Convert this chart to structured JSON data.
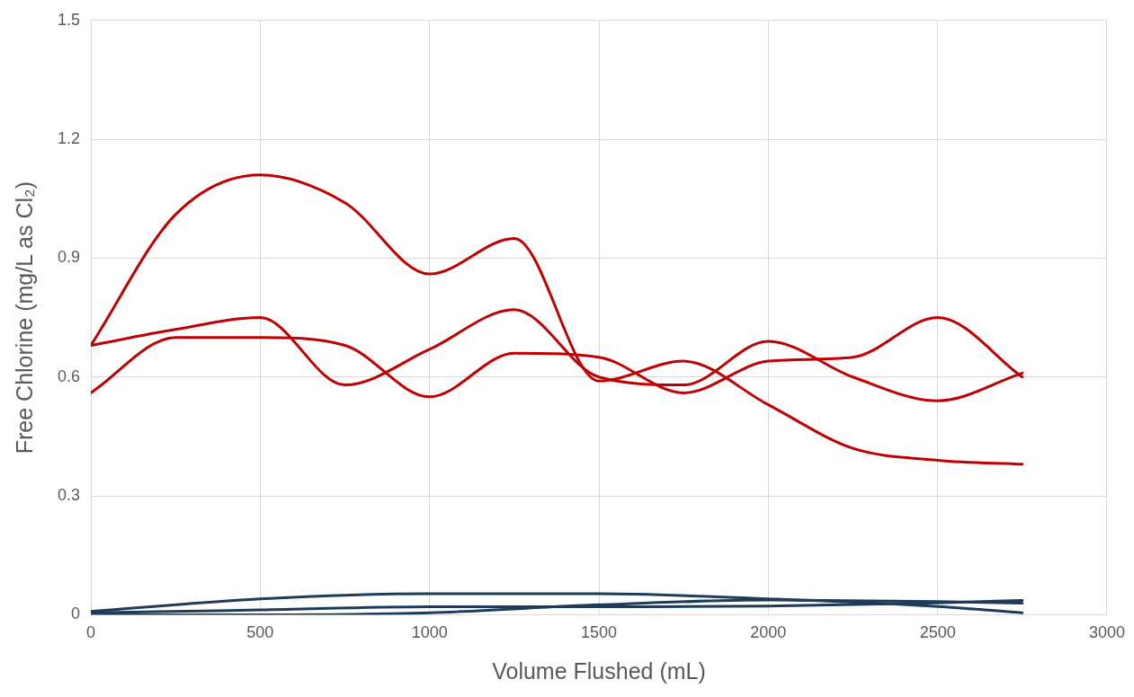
{
  "chart_data": {
    "type": "line",
    "xlabel": "Volume Flushed (mL)",
    "ylabel": "Free Chlorine (mg/L as Cl₂)",
    "xlim": [
      0,
      3000
    ],
    "xticks": [
      0,
      500,
      1000,
      1500,
      2000,
      2500,
      3000
    ],
    "ylim": [
      0,
      1.5
    ],
    "yticks": [
      0,
      {
        "value": 0.3,
        "label": "0.3"
      },
      {
        "value": 0.6,
        "label": "0.6"
      },
      {
        "value": 0.9,
        "label": "0.9"
      },
      {
        "value": 1.2,
        "label": "1.2"
      },
      {
        "value": 1.5,
        "label": "1.5"
      }
    ],
    "grid": true,
    "legend": false,
    "marker": "none",
    "line_style": "solid",
    "series": [
      {
        "color": "#c00000",
        "x": [
          0,
          250,
          500,
          750,
          1000,
          1250,
          1500,
          1750,
          2000,
          2250,
          2500,
          2750
        ],
        "values": [
          0.68,
          1.01,
          1.11,
          1.04,
          0.86,
          0.95,
          0.59,
          0.64,
          0.53,
          0.42,
          0.39,
          0.38
        ]
      },
      {
        "color": "#c00000",
        "x": [
          0,
          250,
          500,
          750,
          1000,
          1250,
          1500,
          1750,
          2000,
          2250,
          2500,
          2750
        ],
        "values": [
          0.68,
          0.72,
          0.75,
          0.58,
          0.67,
          0.77,
          0.6,
          0.58,
          0.69,
          0.6,
          0.54,
          0.61
        ]
      },
      {
        "color": "#c00000",
        "x": [
          0,
          250,
          500,
          750,
          1000,
          1250,
          1500,
          1750,
          2000,
          2250,
          2500,
          2750
        ],
        "values": [
          0.56,
          0.7,
          0.7,
          0.68,
          0.55,
          0.66,
          0.65,
          0.56,
          0.64,
          0.65,
          0.75,
          0.6
        ]
      },
      {
        "color": "#1f3b5a",
        "x": [
          0,
          500,
          1000,
          1500,
          2000,
          2500,
          2750
        ],
        "values": [
          0.008,
          0.04,
          0.053,
          0.053,
          0.04,
          0.021,
          0.005
        ]
      },
      {
        "color": "#1f3b5a",
        "x": [
          0,
          500,
          1000,
          1500,
          2000,
          2500,
          2750
        ],
        "values": [
          0.005,
          0.012,
          0.02,
          0.02,
          0.022,
          0.03,
          0.036
        ]
      },
      {
        "color": "#1f3b5a",
        "x": [
          0,
          500,
          1000,
          1500,
          2000,
          2500,
          2750
        ],
        "values": [
          0,
          0,
          0.005,
          0.025,
          0.037,
          0.033,
          0.029
        ]
      }
    ]
  }
}
